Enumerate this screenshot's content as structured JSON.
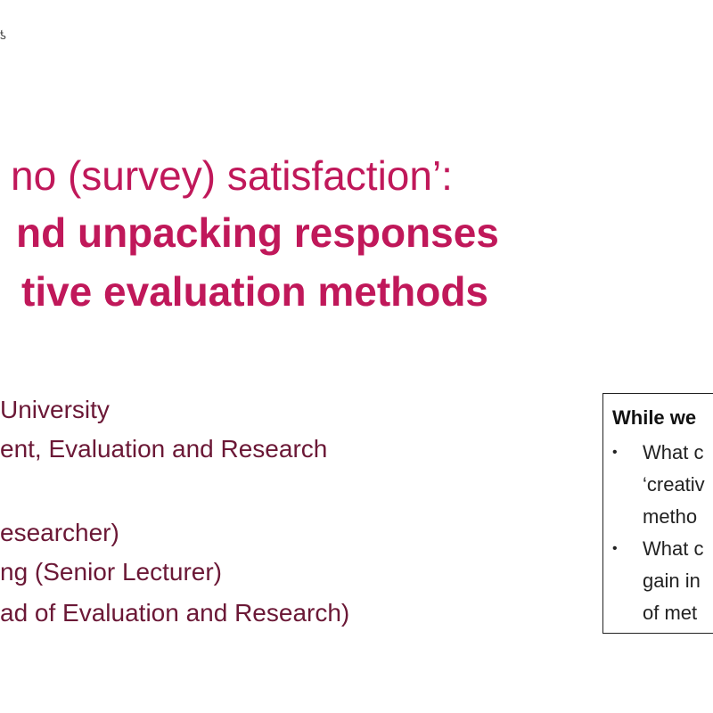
{
  "slide": {
    "corner_mark": "ƾ",
    "title": {
      "line1": "no (survey) satisfaction’:",
      "line2": "nd unpacking responses",
      "line3": "tive evaluation methods"
    },
    "info": [
      "University",
      "ent, Evaluation and Research",
      "esearcher)",
      "ng (Senior Lecturer)",
      "ad of Evaluation and Research)"
    ],
    "sidebox": {
      "heading": "While we",
      "items": [
        {
          "bullet": "•",
          "lines": [
            "What c",
            "‘creativ",
            "metho"
          ]
        },
        {
          "bullet": "•",
          "lines": [
            "What c",
            "gain in",
            "of met"
          ]
        }
      ]
    }
  }
}
